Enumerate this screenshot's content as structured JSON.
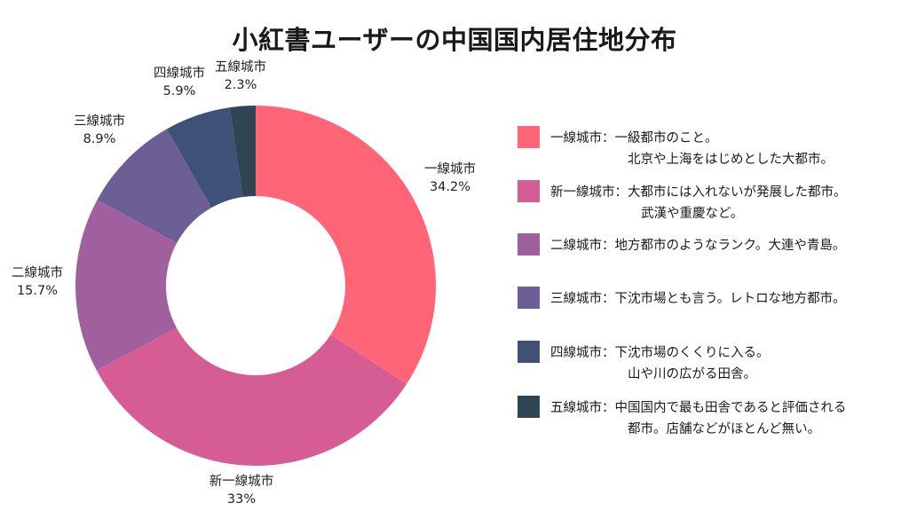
{
  "title": "小紅書ユーザーの中国国内居住地分布",
  "chart_data": {
    "type": "pie",
    "title": "小紅書ユーザーの中国国内居住地分布",
    "donut": true,
    "start": "12 o'clock",
    "direction": "clockwise",
    "legend_position": "right",
    "slices": [
      {
        "name": "一線城市",
        "value": 34.2,
        "label": "34.2%",
        "color": "#FF6577"
      },
      {
        "name": "新一線城市",
        "value": 33.0,
        "label": "33%",
        "color": "#D55D94"
      },
      {
        "name": "二線城市",
        "value": 15.7,
        "label": "15.7%",
        "color": "#A0609D"
      },
      {
        "name": "三線城市",
        "value": 8.9,
        "label": "8.9%",
        "color": "#6C5F96"
      },
      {
        "name": "四線城市",
        "value": 5.9,
        "label": "5.9%",
        "color": "#3F5176"
      },
      {
        "name": "五線城市",
        "value": 2.3,
        "label": "2.3%",
        "color": "#2E4554"
      }
    ]
  },
  "legend": [
    {
      "line1": "一線城市：一級都市のこと。",
      "line2": "北京や上海をはじめとした大都市。",
      "color": "#FF6577"
    },
    {
      "line1": "新一線城市：大都市には入れないが発展した都市。",
      "line2": "武漢や重慶など。",
      "color": "#D55D94"
    },
    {
      "line1": "二線城市：地方都市のようなランク。大連や青島。",
      "line2": "",
      "color": "#A0609D"
    },
    {
      "line1": "三線城市：下沈市場とも言う。レトロな地方都市。",
      "line2": "",
      "color": "#6C5F96"
    },
    {
      "line1": "四線城市：下沈市場のくくりに入る。",
      "line2": "山や川の広がる田舎。",
      "color": "#3F5176"
    },
    {
      "line1": "五線城市：中国国内で最も田舎であると評価される",
      "line2": "都市。店舗などがほとんど無い。",
      "color": "#2E4554"
    }
  ]
}
